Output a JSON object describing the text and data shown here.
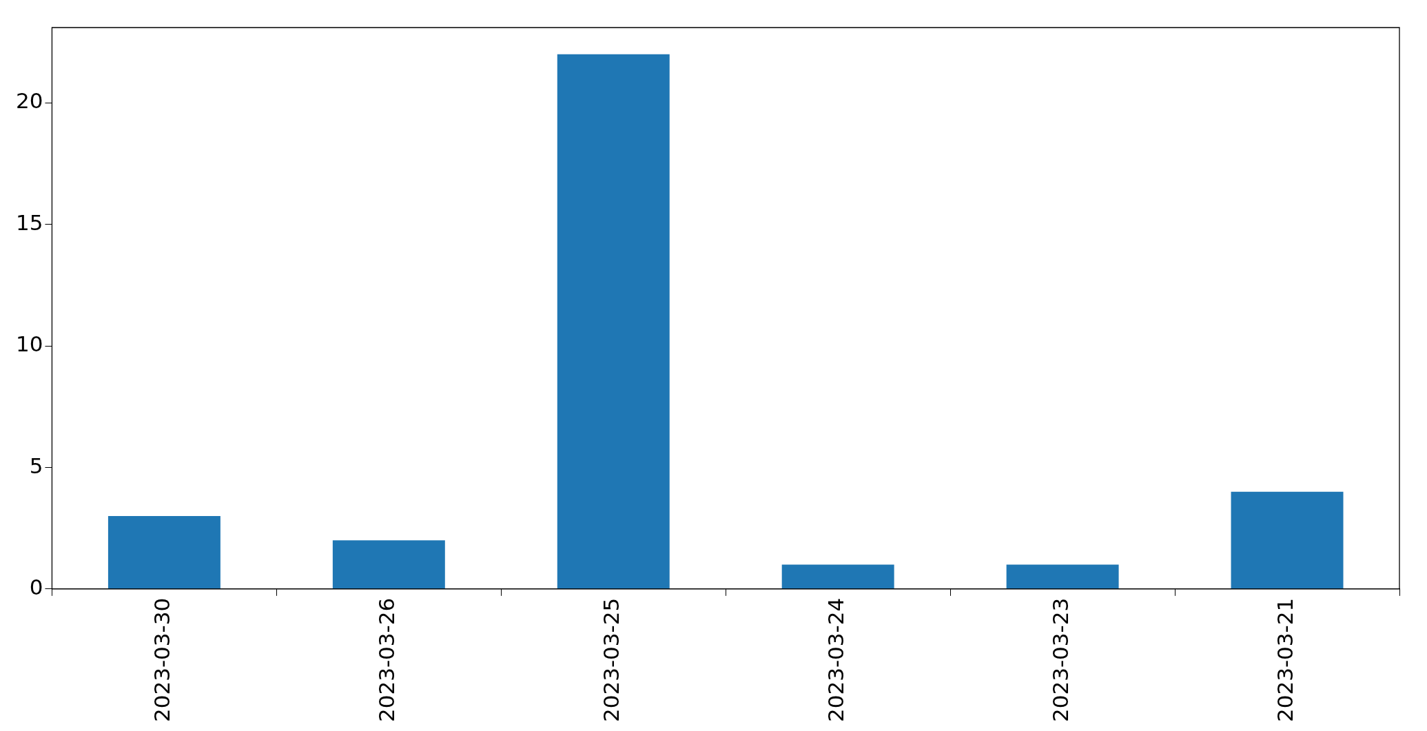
{
  "chart_data": {
    "type": "bar",
    "categories": [
      "2023-03-30",
      "2023-03-26",
      "2023-03-25",
      "2023-03-24",
      "2023-03-23",
      "2023-03-21"
    ],
    "values": [
      3,
      2,
      22,
      1,
      1,
      4
    ],
    "color": "#1f77b4",
    "ylim": [
      0,
      23.1
    ],
    "yticks": [
      0,
      5,
      10,
      15,
      20
    ],
    "grid": false
  }
}
